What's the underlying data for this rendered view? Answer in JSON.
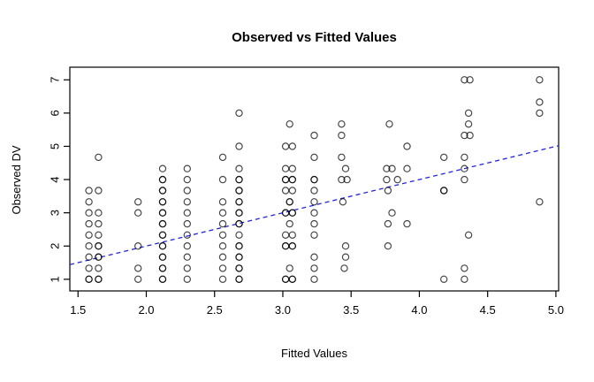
{
  "figure": {
    "title": "Observed vs Fitted Values",
    "background": "#ffffff",
    "frame_color": "#000000"
  },
  "chart_data": {
    "type": "scatter",
    "title": "Observed vs Fitted Values",
    "xlabel": "Fitted Values",
    "ylabel": "Observed DV",
    "xlim": [
      1.44,
      5.02
    ],
    "ylim": [
      0.65,
      7.38
    ],
    "x_ticks": [
      1.5,
      2.0,
      2.5,
      3.0,
      3.5,
      4.0,
      4.5,
      5.0
    ],
    "x_tick_labels": [
      "1.5",
      "2.0",
      "2.5",
      "3.0",
      "3.5",
      "4.0",
      "4.5",
      "5.0"
    ],
    "y_ticks": [
      1,
      2,
      3,
      4,
      5,
      6,
      7
    ],
    "y_tick_labels": [
      "1",
      "2",
      "3",
      "4",
      "5",
      "6",
      "7"
    ],
    "grid": false,
    "point_color": "#000000",
    "point_style": "open-circle",
    "reference_line": {
      "name": "identity-line",
      "slope": 1,
      "intercept": 0,
      "x_start": 1.44,
      "x_end": 5.02,
      "color": "#2222ee",
      "style": "dashed"
    },
    "points": [
      [
        1.58,
        3.67
      ],
      [
        1.58,
        3.33
      ],
      [
        1.58,
        3.0
      ],
      [
        1.58,
        2.67
      ],
      [
        1.58,
        2.33
      ],
      [
        1.58,
        2.0
      ],
      [
        1.58,
        1.67
      ],
      [
        1.58,
        1.33
      ],
      [
        1.58,
        1.0,
        2
      ],
      [
        1.65,
        4.67
      ],
      [
        1.65,
        3.67
      ],
      [
        1.65,
        3.0
      ],
      [
        1.65,
        2.67
      ],
      [
        1.65,
        2.33
      ],
      [
        1.65,
        2.0,
        2
      ],
      [
        1.65,
        1.67,
        2
      ],
      [
        1.65,
        1.33
      ],
      [
        1.65,
        1.0,
        2
      ],
      [
        1.94,
        3.33
      ],
      [
        1.94,
        3.0
      ],
      [
        1.94,
        2.0
      ],
      [
        1.94,
        1.33
      ],
      [
        1.94,
        1.0
      ],
      [
        2.12,
        4.33
      ],
      [
        2.12,
        4.0,
        2
      ],
      [
        2.12,
        3.67,
        2
      ],
      [
        2.12,
        3.33,
        2
      ],
      [
        2.12,
        3.0,
        2
      ],
      [
        2.12,
        2.67,
        2
      ],
      [
        2.12,
        2.33,
        2
      ],
      [
        2.12,
        2.0,
        2
      ],
      [
        2.12,
        1.67,
        2
      ],
      [
        2.12,
        1.33,
        2
      ],
      [
        2.12,
        1.0,
        2
      ],
      [
        2.3,
        4.33
      ],
      [
        2.3,
        4.0
      ],
      [
        2.3,
        3.67
      ],
      [
        2.3,
        3.33
      ],
      [
        2.3,
        3.0
      ],
      [
        2.3,
        2.67
      ],
      [
        2.3,
        2.33
      ],
      [
        2.3,
        2.0
      ],
      [
        2.3,
        1.67
      ],
      [
        2.3,
        1.33
      ],
      [
        2.3,
        1.0
      ],
      [
        2.56,
        4.67
      ],
      [
        2.56,
        4.0
      ],
      [
        2.56,
        3.33
      ],
      [
        2.56,
        3.0
      ],
      [
        2.56,
        2.67
      ],
      [
        2.56,
        2.33
      ],
      [
        2.56,
        2.0
      ],
      [
        2.56,
        1.67
      ],
      [
        2.56,
        1.33
      ],
      [
        2.56,
        1.0
      ],
      [
        2.68,
        6.0
      ],
      [
        2.68,
        5.0
      ],
      [
        2.68,
        4.33
      ],
      [
        2.68,
        4.0,
        2
      ],
      [
        2.68,
        3.67,
        2
      ],
      [
        2.68,
        3.33,
        2
      ],
      [
        2.68,
        3.0,
        2
      ],
      [
        2.68,
        2.67,
        2
      ],
      [
        2.68,
        2.33
      ],
      [
        2.68,
        2.0,
        2
      ],
      [
        2.68,
        1.67,
        2
      ],
      [
        2.68,
        1.33,
        2
      ],
      [
        2.68,
        1.0,
        2
      ],
      [
        3.02,
        5.0
      ],
      [
        3.02,
        4.33
      ],
      [
        3.02,
        4.0,
        2
      ],
      [
        3.02,
        3.67
      ],
      [
        3.02,
        3.0,
        2
      ],
      [
        3.02,
        2.33
      ],
      [
        3.02,
        2.0,
        2
      ],
      [
        3.02,
        1.0,
        2
      ],
      [
        3.07,
        5.0
      ],
      [
        3.07,
        4.33
      ],
      [
        3.07,
        4.0,
        2
      ],
      [
        3.07,
        3.67
      ],
      [
        3.07,
        3.0,
        2
      ],
      [
        3.07,
        2.33
      ],
      [
        3.07,
        2.0,
        2
      ],
      [
        3.07,
        1.0,
        2
      ],
      [
        3.05,
        5.67
      ],
      [
        3.05,
        3.33,
        2
      ],
      [
        3.05,
        2.67
      ],
      [
        3.05,
        1.33
      ],
      [
        3.23,
        5.33
      ],
      [
        3.23,
        4.67
      ],
      [
        3.23,
        4.0,
        2
      ],
      [
        3.23,
        3.67
      ],
      [
        3.23,
        3.33
      ],
      [
        3.23,
        3.0
      ],
      [
        3.23,
        2.67
      ],
      [
        3.23,
        2.33
      ],
      [
        3.23,
        1.67
      ],
      [
        3.23,
        1.33
      ],
      [
        3.23,
        1.0
      ],
      [
        3.43,
        5.67
      ],
      [
        3.43,
        5.33
      ],
      [
        3.43,
        4.67
      ],
      [
        3.43,
        4.0
      ],
      [
        3.44,
        3.33
      ],
      [
        3.46,
        4.33
      ],
      [
        3.47,
        4.0
      ],
      [
        3.46,
        2.0
      ],
      [
        3.46,
        1.67
      ],
      [
        3.45,
        1.33
      ],
      [
        3.78,
        5.67
      ],
      [
        3.91,
        5.0
      ],
      [
        3.76,
        4.33
      ],
      [
        3.8,
        4.33
      ],
      [
        3.91,
        4.33
      ],
      [
        3.76,
        4.0
      ],
      [
        3.84,
        4.0
      ],
      [
        3.77,
        3.67
      ],
      [
        3.8,
        3.0
      ],
      [
        3.77,
        2.67
      ],
      [
        3.91,
        2.67
      ],
      [
        3.77,
        2.0
      ],
      [
        4.18,
        4.67
      ],
      [
        4.18,
        3.67,
        2
      ],
      [
        4.18,
        1.0
      ],
      [
        4.33,
        7.0
      ],
      [
        4.33,
        5.33
      ],
      [
        4.33,
        4.67
      ],
      [
        4.33,
        4.33
      ],
      [
        4.33,
        4.0
      ],
      [
        4.33,
        1.33
      ],
      [
        4.33,
        1.0
      ],
      [
        4.37,
        7.0
      ],
      [
        4.36,
        6.0
      ],
      [
        4.36,
        5.67
      ],
      [
        4.37,
        5.33
      ],
      [
        4.36,
        2.33
      ],
      [
        4.88,
        7.0
      ],
      [
        4.88,
        6.33
      ],
      [
        4.88,
        6.0
      ],
      [
        4.88,
        3.33
      ]
    ]
  }
}
